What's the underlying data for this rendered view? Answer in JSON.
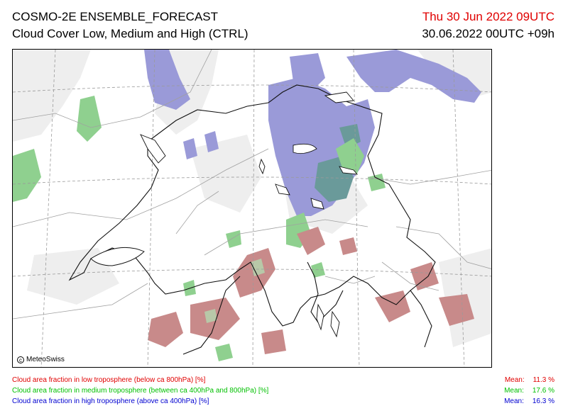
{
  "header": {
    "title": "COSMO-2E ENSEMBLE_FORECAST",
    "subtitle": "Cloud Cover Low, Medium and High (CTRL)",
    "valid_time": "Thu 30 Jun 2022 09UTC",
    "run_time": "30.06.2022 00UTC +09h"
  },
  "map": {
    "copyright": "MeteoSwiss",
    "colors": {
      "low": "#c88a8a",
      "medium": "#8fd08f",
      "high": "#9a9ad8",
      "low_medium_overlap": "#b8c8a8",
      "medium_high_overlap": "#6a9a9a",
      "light_cloud": "#eeeeee"
    }
  },
  "legend": [
    {
      "label": "Cloud area fraction in low troposphere (below ca 800hPa) [%]",
      "mean_label": "Mean:",
      "mean_value": "11.3 %",
      "color": "#e00000"
    },
    {
      "label": "Cloud area fraction in medium troposphere (between ca 400hPa and 800hPa) [%]",
      "mean_label": "Mean:",
      "mean_value": "17.6 %",
      "color": "#00c000"
    },
    {
      "label": "Cloud area fraction in high troposphere (above ca 400hPa) [%]",
      "mean_label": "Mean:",
      "mean_value": "16.3 %",
      "color": "#0000d0"
    }
  ]
}
